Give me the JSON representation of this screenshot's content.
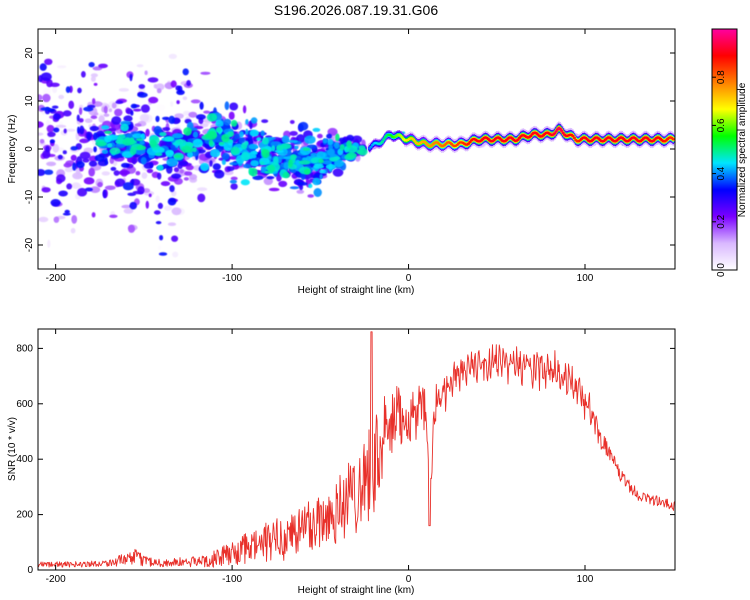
{
  "title": "S196.2026.087.19.31.G06",
  "chart_data": [
    {
      "type": "heatmap",
      "title": "S196.2026.087.19.31.G06",
      "xlabel": "Height of straight line (km)",
      "ylabel": "Frequency (Hz)",
      "xlim": [
        -210,
        151
      ],
      "ylim": [
        -25,
        25
      ],
      "xticks": [
        -200,
        -100,
        0,
        100
      ],
      "yticks": [
        -20,
        -10,
        0,
        10,
        20
      ],
      "colorbar": {
        "label": "Normalized spectral amplitude",
        "range": [
          0,
          1
        ],
        "ticks": [
          0.0,
          0.2,
          0.4,
          0.6,
          0.8
        ],
        "colors": [
          "#ffffff",
          "#d9b8ff",
          "#7a00ff",
          "#0000ff",
          "#00e5ff",
          "#00ff00",
          "#ffff00",
          "#ff7f00",
          "#ff0000",
          "#ff00a0"
        ]
      },
      "ridge": {
        "x": [
          -200,
          -160,
          -130,
          -110,
          -90,
          -70,
          -55,
          -45,
          -35,
          -25,
          -18,
          -10,
          0,
          10,
          20,
          30,
          40,
          50,
          60,
          70,
          80,
          85,
          90,
          95,
          100,
          110,
          120,
          130,
          140,
          150
        ],
        "y": [
          2,
          1,
          0,
          2,
          0,
          -2,
          -3,
          -1,
          0,
          0,
          1,
          3,
          2,
          1,
          1,
          1,
          2,
          2,
          2,
          3,
          3,
          4,
          3,
          2,
          2,
          2,
          2,
          2,
          2,
          2
        ],
        "amplitude": [
          0.25,
          0.35,
          0.2,
          0.3,
          0.35,
          0.35,
          0.35,
          0.3,
          0.3,
          0.35,
          0.45,
          0.55,
          0.7,
          0.75,
          0.8,
          0.85,
          0.9,
          0.9,
          0.9,
          0.9,
          0.9,
          0.95,
          0.9,
          0.85,
          0.9,
          0.9,
          0.9,
          0.9,
          0.9,
          0.85
        ],
        "spread_hz": [
          25,
          25,
          25,
          12,
          10,
          10,
          9,
          7,
          5,
          2,
          1.5,
          1.5,
          1.5,
          1.5,
          1.5,
          1.5,
          1.5,
          1.5,
          1.5,
          1.5,
          1.5,
          1.5,
          1.5,
          1.5,
          1.5,
          1.5,
          1.5,
          1.5,
          1.5,
          1.5
        ]
      }
    },
    {
      "type": "line",
      "xlabel": "Height of straight line (km)",
      "ylabel": "SNR (10 * v/v)",
      "xlim": [
        -210,
        151
      ],
      "ylim": [
        0,
        870
      ],
      "xticks": [
        -200,
        -100,
        0,
        100
      ],
      "yticks": [
        0,
        200,
        400,
        600,
        800
      ],
      "series": [
        {
          "name": "SNR",
          "color": "#e8302a",
          "x": [
            -210,
            -190,
            -170,
            -155,
            -150,
            -140,
            -120,
            -110,
            -100,
            -90,
            -80,
            -70,
            -60,
            -50,
            -40,
            -35,
            -30,
            -25,
            -22,
            -20,
            -18,
            -15,
            -12,
            -10,
            -8,
            -5,
            0,
            5,
            10,
            12,
            15,
            20,
            25,
            30,
            40,
            50,
            60,
            70,
            80,
            90,
            100,
            110,
            120,
            130,
            140,
            150
          ],
          "mean": [
            20,
            20,
            25,
            45,
            35,
            25,
            30,
            40,
            60,
            80,
            100,
            120,
            150,
            180,
            220,
            250,
            280,
            330,
            360,
            380,
            400,
            450,
            500,
            520,
            530,
            550,
            560,
            570,
            560,
            250,
            600,
            640,
            690,
            720,
            740,
            750,
            745,
            735,
            720,
            690,
            610,
            470,
            340,
            270,
            250,
            230
          ],
          "noise": [
            10,
            10,
            12,
            30,
            20,
            15,
            20,
            30,
            45,
            60,
            75,
            85,
            100,
            110,
            130,
            140,
            150,
            170,
            180,
            180,
            180,
            160,
            150,
            140,
            130,
            120,
            110,
            100,
            90,
            60,
            70,
            50,
            40,
            40,
            35,
            40,
            45,
            50,
            50,
            45,
            40,
            30,
            25,
            20,
            20,
            20
          ],
          "spikes": [
            {
              "x": -21,
              "y": 860
            },
            {
              "x": 12,
              "y": 160
            }
          ]
        }
      ]
    }
  ]
}
